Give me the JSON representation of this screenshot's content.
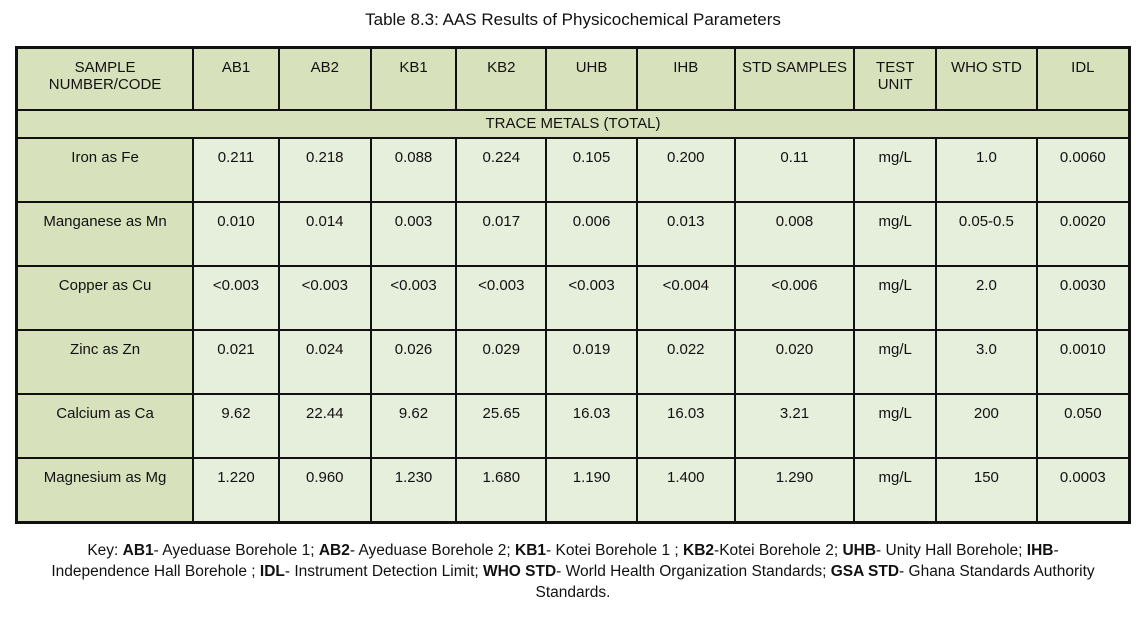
{
  "title": "Table 8.3: AAS Results of Physicochemical Parameters",
  "headers": [
    "SAMPLE NUMBER/CODE",
    "AB1",
    "AB2",
    "KB1",
    "KB2",
    "UHB",
    "IHB",
    "STD SAMPLES",
    "TEST UNIT",
    "WHO STD",
    "IDL"
  ],
  "section": "TRACE METALS (TOTAL)",
  "rows": [
    [
      "Iron as Fe",
      "0.211",
      "0.218",
      "0.088",
      "0.224",
      "0.105",
      "0.200",
      "0.11",
      "mg/L",
      "1.0",
      "0.0060"
    ],
    [
      "Manganese as Mn",
      "0.010",
      "0.014",
      "0.003",
      "0.017",
      "0.006",
      "0.013",
      "0.008",
      "mg/L",
      "0.05-0.5",
      "0.0020"
    ],
    [
      "Copper as Cu",
      "<0.003",
      "<0.003",
      "<0.003",
      "<0.003",
      "<0.003",
      "<0.004",
      "<0.006",
      "mg/L",
      "2.0",
      "0.0030"
    ],
    [
      "Zinc as Zn",
      "0.021",
      "0.024",
      "0.026",
      "0.029",
      "0.019",
      "0.022",
      "0.020",
      "mg/L",
      "3.0",
      "0.0010"
    ],
    [
      "Calcium as Ca",
      "9.62",
      "22.44",
      "9.62",
      "25.65",
      "16.03",
      "16.03",
      "3.21",
      "mg/L",
      "200",
      "0.050"
    ],
    [
      "Magnesium as Mg",
      "1.220",
      "0.960",
      "1.230",
      "1.680",
      "1.190",
      "1.400",
      "1.290",
      "mg/L",
      "150",
      "0.0003"
    ]
  ],
  "key": [
    {
      "term": "",
      "text": "Key: "
    },
    {
      "term": "AB1",
      "text": "- Ayeduase Borehole 1; "
    },
    {
      "term": "AB2",
      "text": "- Ayeduase Borehole 2; "
    },
    {
      "term": "KB1",
      "text": "- Kotei Borehole 1 ; "
    },
    {
      "term": "KB2",
      "text": "-Kotei Borehole 2; "
    },
    {
      "term": "UHB",
      "text": "- Unity Hall Borehole; "
    },
    {
      "term": "IHB",
      "text": "-Independence Hall Borehole ; "
    },
    {
      "term": "IDL",
      "text": "- Instrument Detection Limit; "
    },
    {
      "term": "WHO STD",
      "text": "- World Health Organization Standards; "
    },
    {
      "term": "GSA STD",
      "text": "- Ghana Standards Authority Standards."
    }
  ]
}
